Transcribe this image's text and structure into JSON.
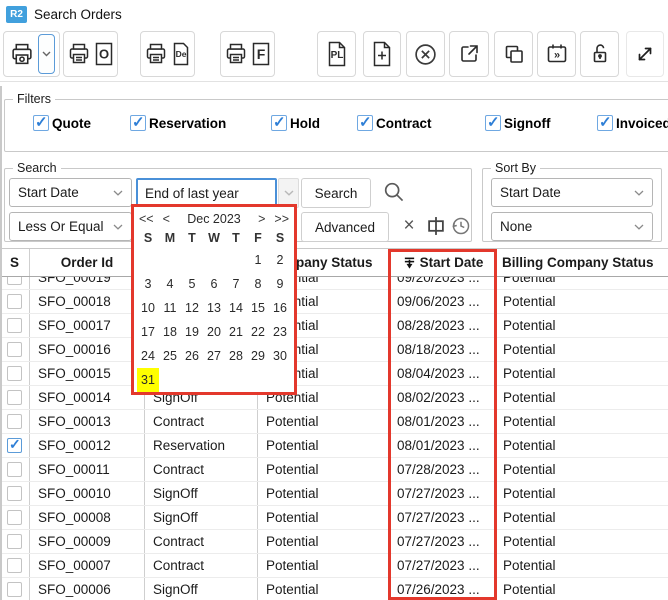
{
  "window": {
    "badge": "R2",
    "title": "Search Orders"
  },
  "toolbar": {
    "icons": [
      "printer-icon",
      "chevron-down-icon",
      "printer-orders-icon",
      "printer-detail-icon",
      "printer-full-icon",
      "pl-document-icon",
      "new-document-icon",
      "cancel-circle-icon",
      "open-external-icon",
      "duplicate-icon",
      "calendar-forward-icon",
      "unlock-icon",
      "expand-icon"
    ],
    "glyphs": {
      "orders": "O",
      "detail": "De",
      "full": "F",
      "pl": "PL",
      "schedule": "»"
    }
  },
  "filters": {
    "legend": "Filters",
    "items": [
      {
        "label": "Quote",
        "checked": true
      },
      {
        "label": "Reservation",
        "checked": true
      },
      {
        "label": "Hold",
        "checked": true
      },
      {
        "label": "Contract",
        "checked": true
      },
      {
        "label": "Signoff",
        "checked": true
      },
      {
        "label": "Invoiced",
        "checked": true
      }
    ]
  },
  "search": {
    "legend": "Search",
    "field": "Start Date",
    "value": "End of last year",
    "search_label": "Search",
    "operator": "Less Or Equal",
    "advanced_label": "Advanced",
    "clear_glyph": "×"
  },
  "sort": {
    "legend": "Sort By",
    "primary": "Start Date",
    "secondary": "None"
  },
  "calendar": {
    "prev_year": "<<",
    "prev_month": "<",
    "title": "Dec 2023",
    "next_month": ">",
    "next_year": ">>",
    "weekdays": [
      "S",
      "M",
      "T",
      "W",
      "T",
      "F",
      "S"
    ],
    "days": [
      "",
      "",
      "",
      "",
      "",
      "1",
      "2",
      "3",
      "4",
      "5",
      "6",
      "7",
      "8",
      "9",
      "10",
      "11",
      "12",
      "13",
      "14",
      "15",
      "16",
      "17",
      "18",
      "19",
      "20",
      "21",
      "22",
      "23",
      "24",
      "25",
      "26",
      "27",
      "28",
      "29",
      "30",
      "31",
      "",
      "",
      "",
      "",
      "",
      ""
    ],
    "highlighted_day": "31"
  },
  "table": {
    "headers": [
      "S",
      "Order Id",
      "",
      "Company Status",
      "Start Date",
      "Billing Company Status"
    ],
    "partial_row": {
      "id": "SFO_00019",
      "status": "",
      "company": "Potential",
      "start": "09/20/2023 ...",
      "billing": "Potential",
      "checked": false
    },
    "rows": [
      {
        "id": "SFO_00018",
        "status": "",
        "company": "Potential",
        "start": "09/06/2023 ...",
        "billing": "Potential",
        "checked": false
      },
      {
        "id": "SFO_00017",
        "status": "",
        "company": "Potential",
        "start": "08/28/2023 ...",
        "billing": "Potential",
        "checked": false
      },
      {
        "id": "SFO_00016",
        "status": "",
        "company": "Potential",
        "start": "08/18/2023 ...",
        "billing": "Potential",
        "checked": false
      },
      {
        "id": "SFO_00015",
        "status": "",
        "company": "Potential",
        "start": "08/04/2023 ...",
        "billing": "Potential",
        "checked": false
      },
      {
        "id": "SFO_00014",
        "status": "SignOff",
        "company": "Potential",
        "start": "08/02/2023 ...",
        "billing": "Potential",
        "checked": false
      },
      {
        "id": "SFO_00013",
        "status": "Contract",
        "company": "Potential",
        "start": "08/01/2023 ...",
        "billing": "Potential",
        "checked": false
      },
      {
        "id": "SFO_00012",
        "status": "Reservation",
        "company": "Potential",
        "start": "08/01/2023 ...",
        "billing": "Potential",
        "checked": true
      },
      {
        "id": "SFO_00011",
        "status": "Contract",
        "company": "Potential",
        "start": "07/28/2023 ...",
        "billing": "Potential",
        "checked": false
      },
      {
        "id": "SFO_00010",
        "status": "SignOff",
        "company": "Potential",
        "start": "07/27/2023 ...",
        "billing": "Potential",
        "checked": false
      },
      {
        "id": "SFO_00008",
        "status": "SignOff",
        "company": "Potential",
        "start": "07/27/2023 ...",
        "billing": "Potential",
        "checked": false
      },
      {
        "id": "SFO_00009",
        "status": "Contract",
        "company": "Potential",
        "start": "07/27/2023 ...",
        "billing": "Potential",
        "checked": false
      },
      {
        "id": "SFO_00007",
        "status": "Contract",
        "company": "Potential",
        "start": "07/27/2023 ...",
        "billing": "Potential",
        "checked": false
      },
      {
        "id": "SFO_00006",
        "status": "SignOff",
        "company": "Potential",
        "start": "07/26/2023 ...",
        "billing": "Potential",
        "checked": false
      }
    ]
  },
  "colors": {
    "annotation_red": "#e3382c",
    "day_highlight": "#ffff00",
    "focus_blue": "#4a90d8",
    "badge_blue": "#41a0dd",
    "check_blue": "#2f7fd6"
  }
}
